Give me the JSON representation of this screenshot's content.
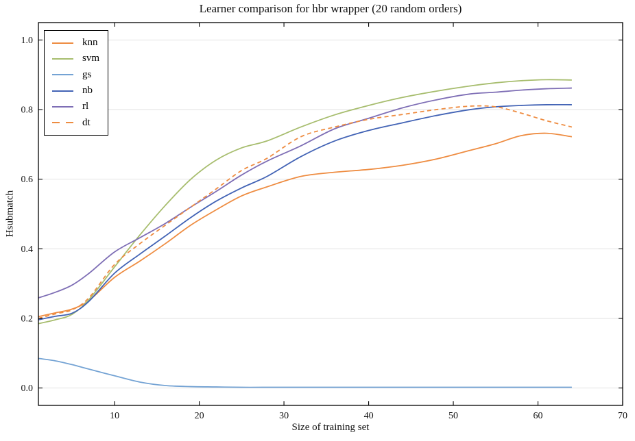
{
  "figure": {
    "background": "#ffffff",
    "frame_color": "#000000",
    "grid_color": "#e2e2e2",
    "tick_color": "#000000",
    "text_color": "#111111"
  },
  "chart_data": {
    "type": "line",
    "title": "Learner comparison for hbr wrapper (20 random orders)",
    "xlabel": "Size of training set",
    "ylabel": "Hsubmatch",
    "xlim": [
      1,
      70
    ],
    "ylim": [
      -0.05,
      1.05
    ],
    "xticks": [
      10,
      20,
      30,
      40,
      50,
      60,
      70
    ],
    "yticks": [
      0.0,
      0.2,
      0.4,
      0.6,
      0.8,
      1.0
    ],
    "grid": "horizontal-only",
    "legend_position": "upper-left",
    "x": [
      1,
      3,
      5,
      7,
      10,
      13,
      16,
      19,
      22,
      25,
      28,
      32,
      36,
      40,
      44,
      48,
      52,
      55,
      58,
      61,
      64
    ],
    "series": [
      {
        "name": "knn",
        "color": "#ee8c41",
        "dash": false,
        "values": [
          0.205,
          0.216,
          0.227,
          0.252,
          0.318,
          0.365,
          0.415,
          0.468,
          0.512,
          0.552,
          0.578,
          0.608,
          0.62,
          0.628,
          0.64,
          0.658,
          0.683,
          0.702,
          0.725,
          0.732,
          0.722
        ]
      },
      {
        "name": "svm",
        "color": "#a7bd6e",
        "dash": false,
        "values": [
          0.185,
          0.196,
          0.212,
          0.255,
          0.348,
          0.44,
          0.525,
          0.6,
          0.655,
          0.69,
          0.71,
          0.75,
          0.785,
          0.812,
          0.835,
          0.853,
          0.868,
          0.877,
          0.883,
          0.886,
          0.885
        ]
      },
      {
        "name": "gs",
        "color": "#74a3d4",
        "dash": false,
        "values": [
          0.085,
          0.078,
          0.067,
          0.054,
          0.035,
          0.017,
          0.007,
          0.004,
          0.003,
          0.002,
          0.002,
          0.002,
          0.002,
          0.002,
          0.002,
          0.002,
          0.002,
          0.002,
          0.002,
          0.002,
          0.002
        ]
      },
      {
        "name": "nb",
        "color": "#4263b5",
        "dash": false,
        "values": [
          0.196,
          0.206,
          0.215,
          0.25,
          0.33,
          0.385,
          0.437,
          0.49,
          0.537,
          0.575,
          0.608,
          0.665,
          0.71,
          0.74,
          0.762,
          0.783,
          0.8,
          0.808,
          0.812,
          0.814,
          0.814
        ]
      },
      {
        "name": "rl",
        "color": "#7e6eb5",
        "dash": false,
        "values": [
          0.259,
          0.275,
          0.296,
          0.33,
          0.391,
          0.432,
          0.473,
          0.52,
          0.565,
          0.612,
          0.652,
          0.696,
          0.745,
          0.775,
          0.805,
          0.828,
          0.845,
          0.85,
          0.856,
          0.86,
          0.862
        ]
      },
      {
        "name": "dt",
        "color": "#ee8c41",
        "dash": true,
        "values": [
          0.2,
          0.213,
          0.225,
          0.26,
          0.355,
          0.415,
          0.468,
          0.52,
          0.572,
          0.625,
          0.66,
          0.722,
          0.75,
          0.772,
          0.786,
          0.8,
          0.81,
          0.808,
          0.79,
          0.768,
          0.75
        ]
      }
    ]
  }
}
